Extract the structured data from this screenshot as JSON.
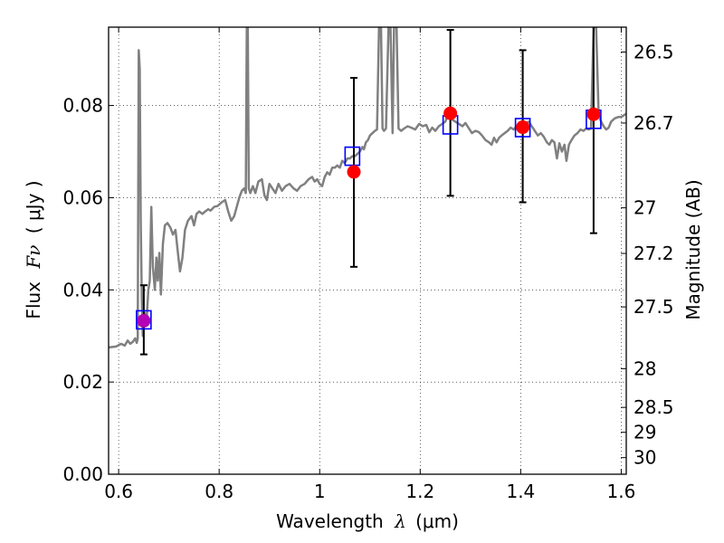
{
  "chart_data": {
    "type": "scatter",
    "xlabel_text": "Wavelength",
    "xlabel_symbol": "λ",
    "xlabel_unit": "(μm)",
    "ylabel_text": "Flux",
    "ylabel_symbol": "Fν",
    "ylabel_unit": "( μJy )",
    "y2label": "Magnitude (AB)",
    "xlim": [
      0.58,
      1.61
    ],
    "ylim": [
      0.0,
      0.097
    ],
    "grid": true,
    "x_ticks": [
      {
        "value": 0.6,
        "label": "0.6"
      },
      {
        "value": 0.8,
        "label": "0.8"
      },
      {
        "value": 1.0,
        "label": "1"
      },
      {
        "value": 1.2,
        "label": "1.2"
      },
      {
        "value": 1.4,
        "label": "1.4"
      },
      {
        "value": 1.6,
        "label": "1.6"
      }
    ],
    "y_ticks": [
      {
        "value": 0.0,
        "label": "0.00"
      },
      {
        "value": 0.02,
        "label": "0.02"
      },
      {
        "value": 0.04,
        "label": "0.04"
      },
      {
        "value": 0.06,
        "label": "0.06"
      },
      {
        "value": 0.08,
        "label": "0.08"
      }
    ],
    "y2_ticks": [
      {
        "flux": 0.0916,
        "label": "26.5"
      },
      {
        "flux": 0.0762,
        "label": "26.7"
      },
      {
        "flux": 0.0578,
        "label": "27"
      },
      {
        "flux": 0.0479,
        "label": "27.2"
      },
      {
        "flux": 0.0363,
        "label": "27.5"
      },
      {
        "flux": 0.0229,
        "label": "28"
      },
      {
        "flux": 0.0145,
        "label": "28.5"
      },
      {
        "flux": 0.0091,
        "label": "29"
      },
      {
        "flux": 0.0036,
        "label": "30"
      }
    ],
    "model_spectrum": {
      "color": "#808080",
      "points": [
        [
          0.58,
          0.0275
        ],
        [
          0.595,
          0.0277
        ],
        [
          0.605,
          0.0283
        ],
        [
          0.612,
          0.0279
        ],
        [
          0.618,
          0.029
        ],
        [
          0.623,
          0.0283
        ],
        [
          0.628,
          0.0287
        ],
        [
          0.633,
          0.0295
        ],
        [
          0.636,
          0.0285
        ],
        [
          0.638,
          0.0295
        ],
        [
          0.64,
          0.092
        ],
        [
          0.642,
          0.088
        ],
        [
          0.644,
          0.055
        ],
        [
          0.646,
          0.038
        ],
        [
          0.648,
          0.03
        ],
        [
          0.652,
          0.035
        ],
        [
          0.656,
          0.034
        ],
        [
          0.659,
          0.04
        ],
        [
          0.662,
          0.042
        ],
        [
          0.665,
          0.058
        ],
        [
          0.668,
          0.045
        ],
        [
          0.672,
          0.04
        ],
        [
          0.675,
          0.047
        ],
        [
          0.678,
          0.042
        ],
        [
          0.681,
          0.048
        ],
        [
          0.684,
          0.039
        ],
        [
          0.688,
          0.05
        ],
        [
          0.692,
          0.054
        ],
        [
          0.697,
          0.0545
        ],
        [
          0.703,
          0.0535
        ],
        [
          0.708,
          0.052
        ],
        [
          0.713,
          0.053
        ],
        [
          0.718,
          0.048
        ],
        [
          0.722,
          0.044
        ],
        [
          0.727,
          0.047
        ],
        [
          0.732,
          0.053
        ],
        [
          0.738,
          0.055
        ],
        [
          0.745,
          0.056
        ],
        [
          0.75,
          0.054
        ],
        [
          0.755,
          0.0565
        ],
        [
          0.76,
          0.057
        ],
        [
          0.767,
          0.0565
        ],
        [
          0.772,
          0.057
        ],
        [
          0.778,
          0.0575
        ],
        [
          0.783,
          0.0572
        ],
        [
          0.79,
          0.058
        ],
        [
          0.797,
          0.0582
        ],
        [
          0.805,
          0.059
        ],
        [
          0.812,
          0.0595
        ],
        [
          0.818,
          0.057
        ],
        [
          0.824,
          0.055
        ],
        [
          0.83,
          0.056
        ],
        [
          0.835,
          0.058
        ],
        [
          0.84,
          0.06
        ],
        [
          0.845,
          0.0615
        ],
        [
          0.85,
          0.062
        ],
        [
          0.853,
          0.061
        ],
        [
          0.855,
          0.097
        ],
        [
          0.857,
          0.097
        ],
        [
          0.859,
          0.062
        ],
        [
          0.862,
          0.061
        ],
        [
          0.867,
          0.0625
        ],
        [
          0.872,
          0.061
        ],
        [
          0.878,
          0.0635
        ],
        [
          0.885,
          0.064
        ],
        [
          0.89,
          0.0605
        ],
        [
          0.895,
          0.0595
        ],
        [
          0.9,
          0.063
        ],
        [
          0.906,
          0.062
        ],
        [
          0.912,
          0.061
        ],
        [
          0.918,
          0.063
        ],
        [
          0.925,
          0.0615
        ],
        [
          0.932,
          0.0625
        ],
        [
          0.94,
          0.063
        ],
        [
          0.948,
          0.062
        ],
        [
          0.955,
          0.0615
        ],
        [
          0.962,
          0.0625
        ],
        [
          0.97,
          0.063
        ],
        [
          0.978,
          0.064
        ],
        [
          0.985,
          0.0645
        ],
        [
          0.99,
          0.0635
        ],
        [
          0.995,
          0.064
        ],
        [
          1.0,
          0.063
        ],
        [
          1.005,
          0.0625
        ],
        [
          1.01,
          0.0645
        ],
        [
          1.015,
          0.0655
        ],
        [
          1.02,
          0.065
        ],
        [
          1.025,
          0.0665
        ],
        [
          1.03,
          0.0665
        ],
        [
          1.035,
          0.067
        ],
        [
          1.04,
          0.0665
        ],
        [
          1.045,
          0.068
        ],
        [
          1.05,
          0.0675
        ],
        [
          1.055,
          0.0685
        ],
        [
          1.06,
          0.0685
        ],
        [
          1.065,
          0.069
        ],
        [
          1.07,
          0.069
        ],
        [
          1.075,
          0.0695
        ],
        [
          1.08,
          0.07
        ],
        [
          1.085,
          0.071
        ],
        [
          1.088,
          0.0705
        ],
        [
          1.092,
          0.072
        ],
        [
          1.096,
          0.0725
        ],
        [
          1.1,
          0.0735
        ],
        [
          1.105,
          0.074
        ],
        [
          1.11,
          0.0745
        ],
        [
          1.114,
          0.0748
        ],
        [
          1.118,
          0.097
        ],
        [
          1.122,
          0.097
        ],
        [
          1.125,
          0.075
        ],
        [
          1.128,
          0.0745
        ],
        [
          1.132,
          0.075
        ],
        [
          1.137,
          0.097
        ],
        [
          1.141,
          0.097
        ],
        [
          1.145,
          0.074
        ],
        [
          1.148,
          0.097
        ],
        [
          1.153,
          0.097
        ],
        [
          1.157,
          0.075
        ],
        [
          1.162,
          0.0745
        ],
        [
          1.168,
          0.075
        ],
        [
          1.175,
          0.0755
        ],
        [
          1.182,
          0.0752
        ],
        [
          1.19,
          0.0748
        ],
        [
          1.198,
          0.076
        ],
        [
          1.205,
          0.0755
        ],
        [
          1.212,
          0.0758
        ],
        [
          1.218,
          0.0742
        ],
        [
          1.224,
          0.0752
        ],
        [
          1.23,
          0.0745
        ],
        [
          1.237,
          0.0755
        ],
        [
          1.244,
          0.076
        ],
        [
          1.25,
          0.0765
        ],
        [
          1.257,
          0.0785
        ],
        [
          1.263,
          0.077
        ],
        [
          1.27,
          0.0765
        ],
        [
          1.277,
          0.076
        ],
        [
          1.284,
          0.0755
        ],
        [
          1.29,
          0.0762
        ],
        [
          1.297,
          0.075
        ],
        [
          1.303,
          0.074
        ],
        [
          1.31,
          0.0745
        ],
        [
          1.317,
          0.0742
        ],
        [
          1.323,
          0.0735
        ],
        [
          1.33,
          0.0725
        ],
        [
          1.337,
          0.072
        ],
        [
          1.342,
          0.0715
        ],
        [
          1.347,
          0.073
        ],
        [
          1.352,
          0.072
        ],
        [
          1.357,
          0.073
        ],
        [
          1.362,
          0.0735
        ],
        [
          1.368,
          0.074
        ],
        [
          1.374,
          0.0745
        ],
        [
          1.38,
          0.0752
        ],
        [
          1.386,
          0.0748
        ],
        [
          1.392,
          0.0755
        ],
        [
          1.398,
          0.0758
        ],
        [
          1.404,
          0.076
        ],
        [
          1.41,
          0.0762
        ],
        [
          1.416,
          0.0765
        ],
        [
          1.422,
          0.0755
        ],
        [
          1.428,
          0.0745
        ],
        [
          1.434,
          0.0735
        ],
        [
          1.44,
          0.074
        ],
        [
          1.446,
          0.0732
        ],
        [
          1.452,
          0.072
        ],
        [
          1.457,
          0.0715
        ],
        [
          1.462,
          0.0725
        ],
        [
          1.467,
          0.072
        ],
        [
          1.472,
          0.0685
        ],
        [
          1.477,
          0.0718
        ],
        [
          1.482,
          0.07
        ],
        [
          1.487,
          0.0715
        ],
        [
          1.491,
          0.068
        ],
        [
          1.496,
          0.0715
        ],
        [
          1.501,
          0.0725
        ],
        [
          1.507,
          0.0735
        ],
        [
          1.513,
          0.074
        ],
        [
          1.519,
          0.0748
        ],
        [
          1.525,
          0.0745
        ],
        [
          1.53,
          0.075
        ],
        [
          1.535,
          0.0748
        ],
        [
          1.54,
          0.075
        ],
        [
          1.545,
          0.097
        ],
        [
          1.55,
          0.097
        ],
        [
          1.555,
          0.078
        ],
        [
          1.56,
          0.0765
        ],
        [
          1.565,
          0.0755
        ],
        [
          1.57,
          0.0748
        ],
        [
          1.575,
          0.0752
        ],
        [
          1.58,
          0.0765
        ],
        [
          1.587,
          0.0772
        ],
        [
          1.594,
          0.0775
        ],
        [
          1.6,
          0.0775
        ],
        [
          1.61,
          0.0782
        ]
      ]
    },
    "observed": {
      "color": "#ff0000",
      "points": [
        {
          "x": 1.068,
          "y": 0.0656,
          "yerr_low": 0.045,
          "yerr_high": 0.086
        },
        {
          "x": 1.26,
          "y": 0.0783,
          "yerr_low": 0.0604,
          "yerr_high": 0.0964
        },
        {
          "x": 1.404,
          "y": 0.0753,
          "yerr_low": 0.059,
          "yerr_high": 0.092
        },
        {
          "x": 1.545,
          "y": 0.0781,
          "yerr_low": 0.0523,
          "yerr_high": 0.097
        }
      ]
    },
    "observed_purple": {
      "color": "#b400b4",
      "points": [
        {
          "x": 0.65,
          "y": 0.0333,
          "yerr_low": 0.026,
          "yerr_high": 0.041
        }
      ]
    },
    "model_bands": {
      "color": "#0000ff",
      "points": [
        {
          "x": 0.65,
          "y": 0.0335
        },
        {
          "x": 1.065,
          "y": 0.069
        },
        {
          "x": 1.26,
          "y": 0.0758
        },
        {
          "x": 1.404,
          "y": 0.0752
        },
        {
          "x": 1.545,
          "y": 0.077
        }
      ]
    }
  }
}
